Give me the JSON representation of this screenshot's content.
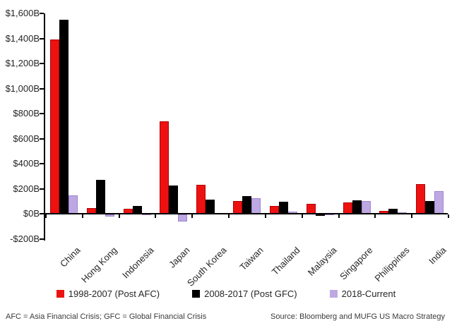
{
  "chart_data": {
    "type": "bar",
    "title": "",
    "xlabel": "",
    "ylabel": "",
    "ylim": [
      -200,
      1600
    ],
    "grid": false,
    "legend_position": "bottom",
    "categories": [
      "China",
      "Hong Kong",
      "Indonesia",
      "Japan",
      "South Korea",
      "Taiwan",
      "Thailand",
      "Malaysia",
      "Singapore",
      "Philippines",
      "India"
    ],
    "series": [
      {
        "name": "1998-2007 (Post AFC)",
        "color": "#ee1111",
        "border": "#b30000",
        "values": [
          1390,
          50,
          40,
          740,
          235,
          105,
          65,
          80,
          90,
          25,
          240
        ]
      },
      {
        "name": "2008-2017 (Post GFC)",
        "color": "#000000",
        "border": "#000000",
        "values": [
          1550,
          270,
          65,
          230,
          115,
          145,
          100,
          -10,
          110,
          40,
          105
        ]
      },
      {
        "name": "2018-Current",
        "color": "#bea8e4",
        "border": "#9b84cc",
        "values": [
          150,
          -15,
          5,
          -55,
          0,
          125,
          20,
          5,
          105,
          15,
          185
        ]
      }
    ],
    "yticks": [
      {
        "v": 1600,
        "label": "$1,600B"
      },
      {
        "v": 1400,
        "label": "$1,400B"
      },
      {
        "v": 1200,
        "label": "$1,200B"
      },
      {
        "v": 1000,
        "label": "$1,000B"
      },
      {
        "v": 800,
        "label": "$800B"
      },
      {
        "v": 600,
        "label": "$600B"
      },
      {
        "v": 400,
        "label": "$400B"
      },
      {
        "v": 200,
        "label": "$200B"
      },
      {
        "v": 0,
        "label": "$0B"
      },
      {
        "v": -200,
        "label": "-$200B"
      }
    ]
  },
  "footer": {
    "left": "AFC = Asia Financial Crisis; GFC = Global Financial Crisis",
    "right": "Source: Bloomberg and MUFG US Macro Strategy"
  }
}
